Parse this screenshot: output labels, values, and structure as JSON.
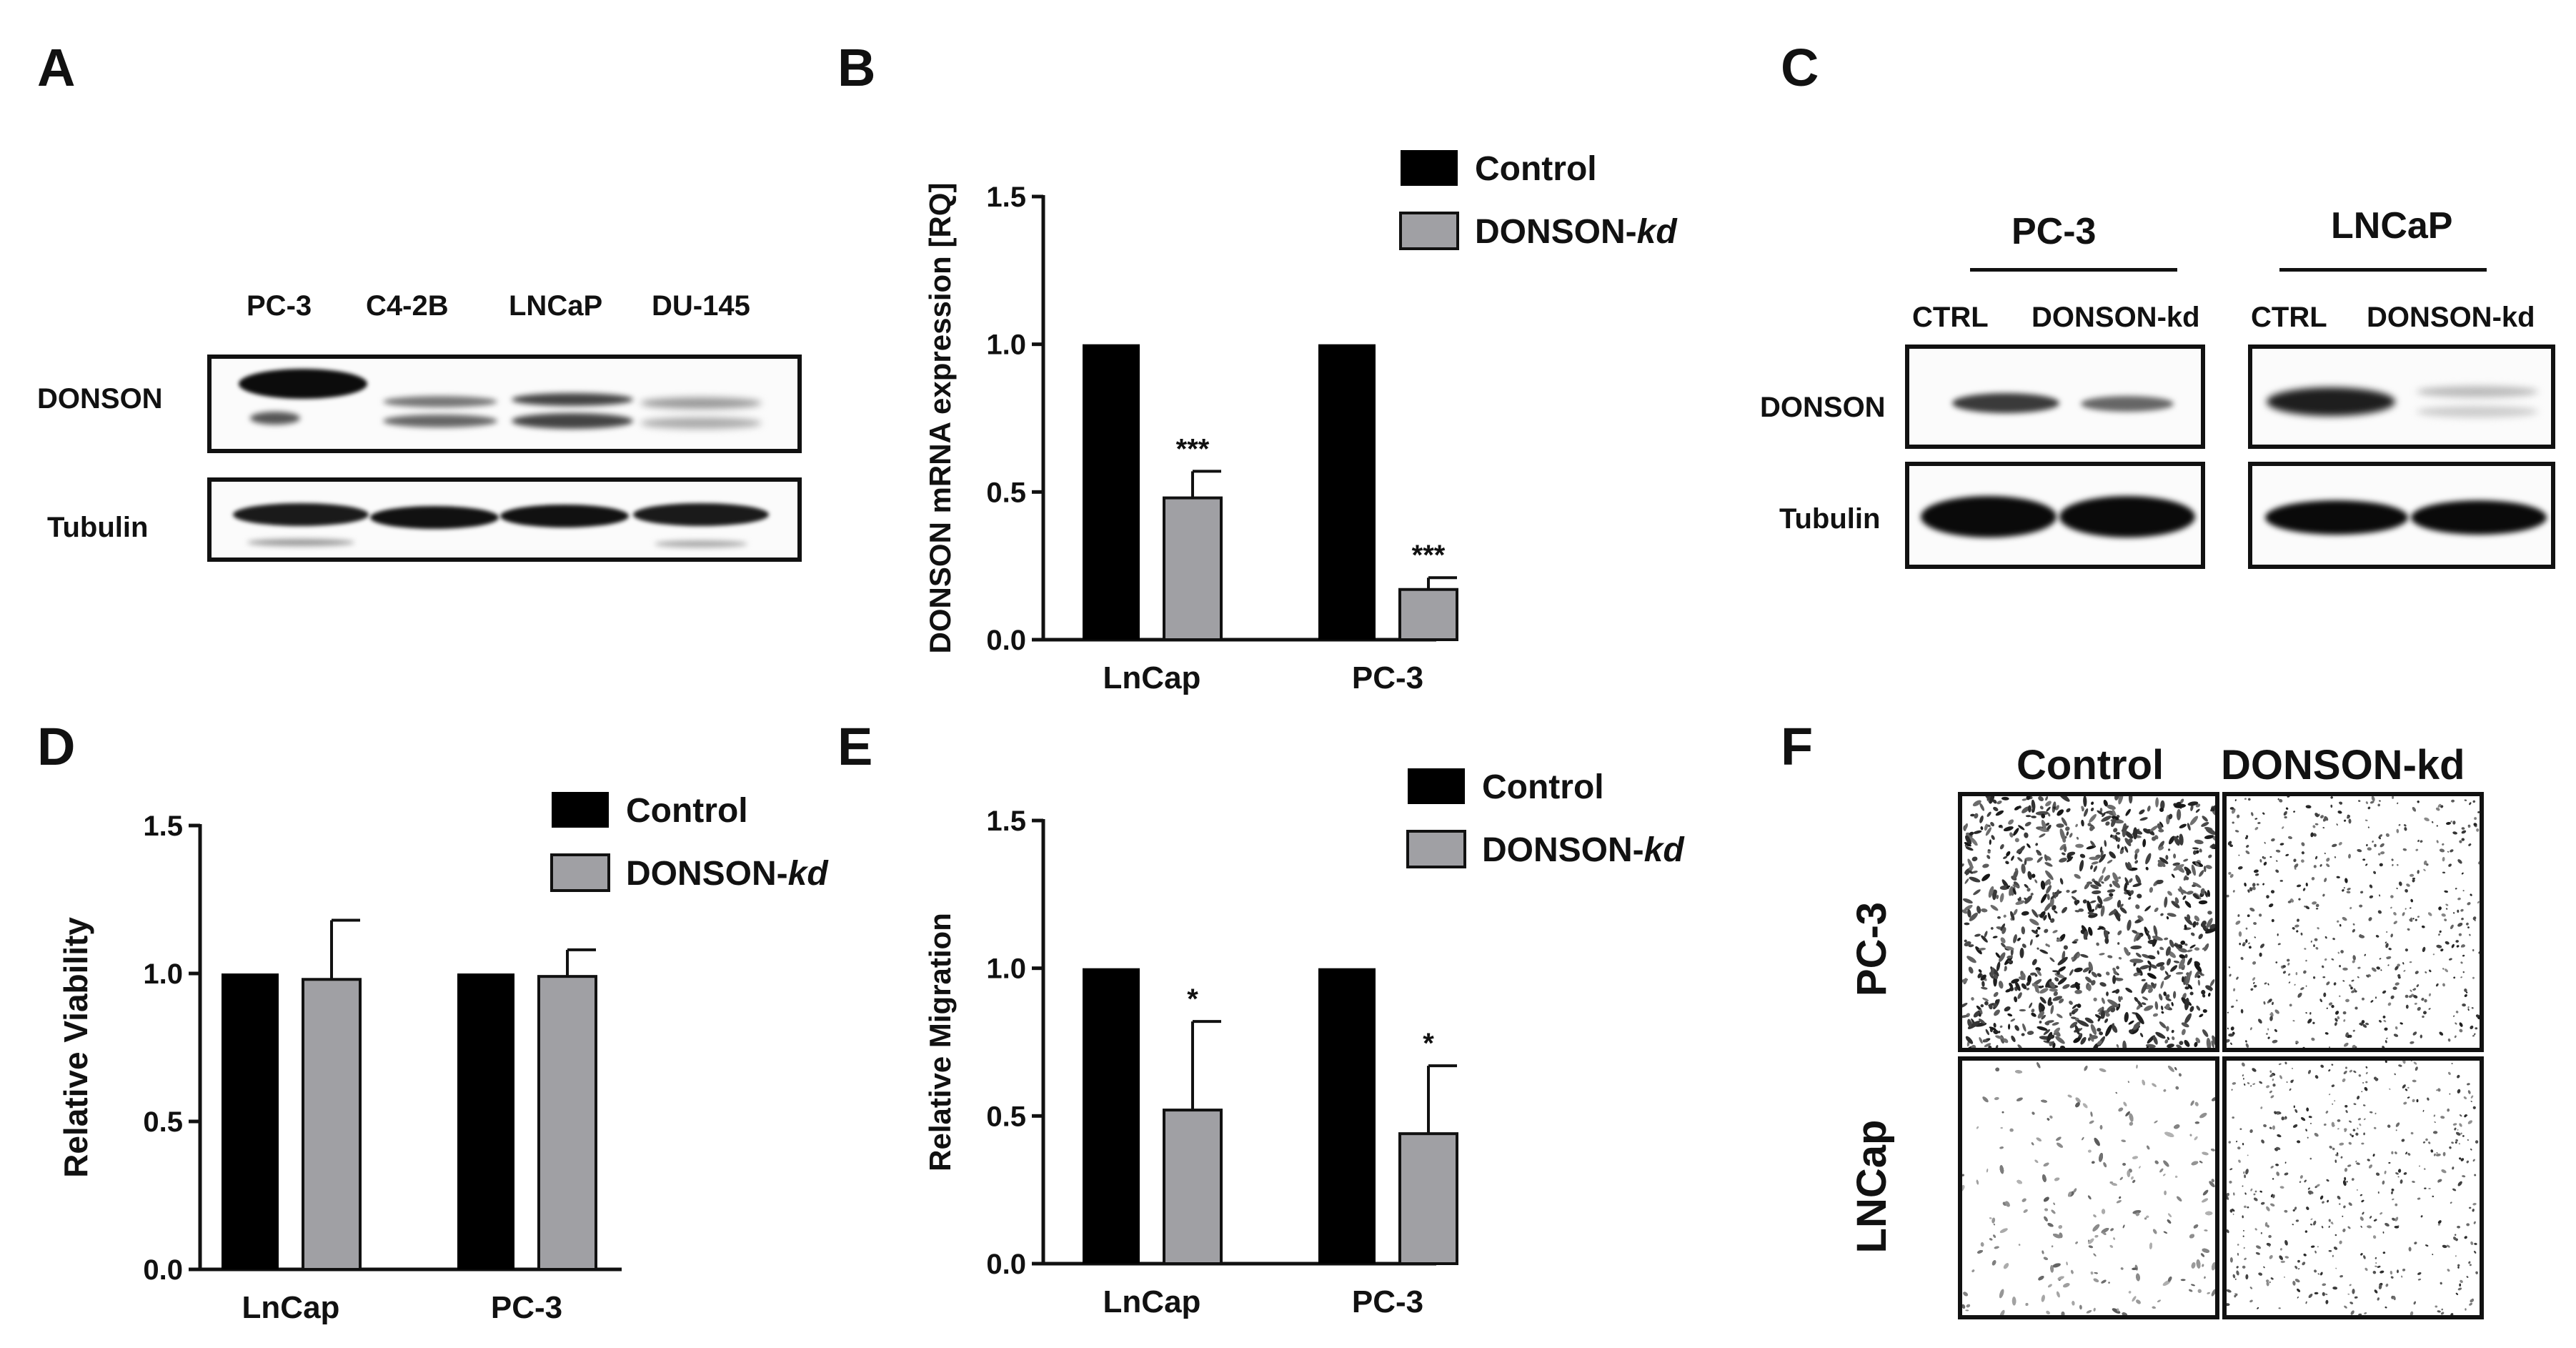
{
  "panel_labels": {
    "a": "A",
    "b": "B",
    "c": "C",
    "d": "D",
    "e": "E",
    "f": "F"
  },
  "panel_a": {
    "lanes": [
      "PC-3",
      "C4-2B",
      "LNCaP",
      "DU-145"
    ],
    "rows": [
      "DONSON",
      "Tubulin"
    ]
  },
  "panel_c": {
    "groups": [
      {
        "name": "PC-3",
        "lanes": [
          "CTRL",
          "DONSON-kd"
        ]
      },
      {
        "name": "LNCaP",
        "lanes": [
          "CTRL",
          "DONSON-kd"
        ]
      }
    ],
    "rows": [
      "DONSON",
      "Tubulin"
    ]
  },
  "panel_f": {
    "columns": [
      "Control",
      "DONSON-kd"
    ],
    "rows": [
      "PC-3",
      "LNCap"
    ]
  },
  "colors": {
    "control": "#000000",
    "donson_kd": "#a0a0a4"
  },
  "chart_data": [
    {
      "panel": "B",
      "type": "bar",
      "categories": [
        "LnCap",
        "PC-3"
      ],
      "series": [
        {
          "name": "Control",
          "values": [
            1.0,
            1.0
          ],
          "errors": [
            0,
            0
          ]
        },
        {
          "name": "DONSON-kd",
          "values": [
            0.48,
            0.17
          ],
          "errors": [
            0.09,
            0.04
          ]
        }
      ],
      "annotations": [
        "***",
        "***"
      ],
      "ylabel": "DONSON mRNA expression [RQ]",
      "yticks": [
        "0.0",
        "0.5",
        "1.0",
        "1.5"
      ],
      "ylim": [
        0,
        1.5
      ],
      "legend": [
        "Control",
        "DONSON-kd"
      ],
      "legend_position": "top-right"
    },
    {
      "panel": "D",
      "type": "bar",
      "categories": [
        "LnCap",
        "PC-3"
      ],
      "series": [
        {
          "name": "Control",
          "values": [
            1.0,
            1.0
          ],
          "errors": [
            0,
            0
          ]
        },
        {
          "name": "DONSON-kd",
          "values": [
            0.98,
            0.99
          ],
          "errors": [
            0.2,
            0.09
          ]
        }
      ],
      "annotations": [
        "",
        ""
      ],
      "ylabel": "Relative Viability",
      "yticks": [
        "0.0",
        "0.5",
        "1.0",
        "1.5"
      ],
      "ylim": [
        0,
        1.5
      ],
      "legend": [
        "Control",
        "DONSON-kd"
      ],
      "legend_position": "top-right"
    },
    {
      "panel": "E",
      "type": "bar",
      "categories": [
        "LnCap",
        "PC-3"
      ],
      "series": [
        {
          "name": "Control",
          "values": [
            1.0,
            1.0
          ],
          "errors": [
            0,
            0
          ]
        },
        {
          "name": "DONSON-kd",
          "values": [
            0.52,
            0.44
          ],
          "errors": [
            0.3,
            0.23
          ]
        }
      ],
      "annotations": [
        "*",
        "*"
      ],
      "ylabel": "Relative Migration",
      "yticks": [
        "0.0",
        "0.5",
        "1.0",
        "1.5"
      ],
      "ylim": [
        0,
        1.5
      ],
      "legend": [
        "Control",
        "DONSON-kd"
      ],
      "legend_position": "top-right"
    }
  ]
}
